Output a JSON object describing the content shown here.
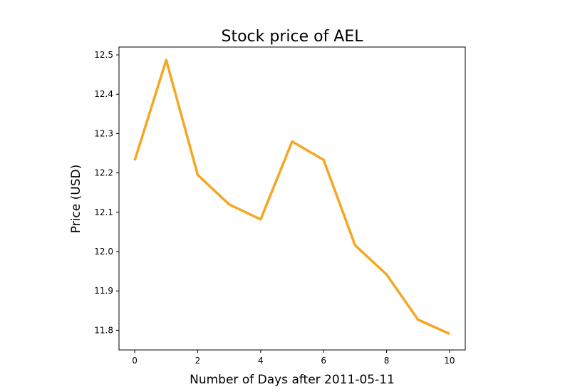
{
  "chart_data": {
    "type": "line",
    "title": "Stock price of AEL",
    "xlabel": "Number of Days after 2011-05-11",
    "ylabel": "Price (USD)",
    "x": [
      0,
      1,
      2,
      3,
      4,
      5,
      6,
      7,
      8,
      9,
      10
    ],
    "series": [
      {
        "values": [
          12.232,
          12.487,
          12.195,
          12.12,
          12.082,
          12.28,
          12.233,
          12.016,
          11.942,
          11.827,
          11.791
        ],
        "color": "#f5a623"
      }
    ],
    "xlim": [
      -0.5,
      10.5
    ],
    "ylim": [
      11.75,
      12.52
    ],
    "xticks": [
      0,
      2,
      4,
      6,
      8,
      10
    ],
    "xtick_labels": [
      "0",
      "2",
      "4",
      "6",
      "8",
      "10"
    ],
    "yticks": [
      11.8,
      11.9,
      12.0,
      12.1,
      12.2,
      12.3,
      12.4,
      12.5
    ],
    "ytick_labels": [
      "11.8",
      "11.9",
      "12.0",
      "12.1",
      "12.2",
      "12.3",
      "12.4",
      "12.5"
    ],
    "grid": false,
    "legend": "none"
  }
}
